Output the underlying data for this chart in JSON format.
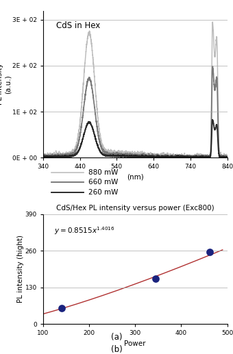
{
  "panel_a": {
    "title_text": "CdS in Hex",
    "xlabel": "(nm)",
    "ylabel": "PL intensity\n(a.u.)",
    "xlim": [
      340,
      840
    ],
    "ylim": [
      0,
      320
    ],
    "yticks": [
      0,
      100,
      200,
      300
    ],
    "ytick_labels": [
      "0E + 00",
      "1E + 02",
      "2E + 02",
      "3E + 02"
    ],
    "xticks": [
      340,
      440,
      540,
      640,
      740,
      840
    ],
    "label_a": "(a)",
    "lines": [
      {
        "power": "880 mW",
        "color": "#b8b8b8",
        "lw": 1.1,
        "peak_val": 260,
        "laser_peak": 290,
        "laser_peak2": 240
      },
      {
        "power": "660 mW",
        "color": "#707070",
        "lw": 1.3,
        "peak_val": 165,
        "laser_peak": 195,
        "laser_peak2": 160
      },
      {
        "power": "260 mW",
        "color": "#1a1a1a",
        "lw": 1.3,
        "peak_val": 73,
        "laser_peak": 80,
        "laser_peak2": 65
      }
    ],
    "legend_colors": [
      "#b8b8b8",
      "#707070",
      "#1a1a1a"
    ],
    "legend_labels": [
      "880 mW",
      "660 mW",
      "260 mW"
    ],
    "legend_lw": [
      1.1,
      1.3,
      1.3
    ]
  },
  "panel_b": {
    "title_text": "CdS/Hex PL intensity versus power (Exc800)",
    "xlabel": "Power",
    "ylabel": "PL intensity (hight)",
    "xlim": [
      100,
      500
    ],
    "ylim": [
      0,
      390
    ],
    "yticks": [
      0,
      130,
      260,
      390
    ],
    "xticks": [
      100,
      200,
      300,
      400,
      500
    ],
    "label_b": "(b)",
    "data_x": [
      140,
      345,
      462
    ],
    "data_y": [
      55,
      160,
      255
    ],
    "dot_color": "#1a237e",
    "dot_size": 45,
    "fit_color": "#b03030",
    "fit_lw": 1.0,
    "fit_x0": 100,
    "fit_x1": 490
  }
}
